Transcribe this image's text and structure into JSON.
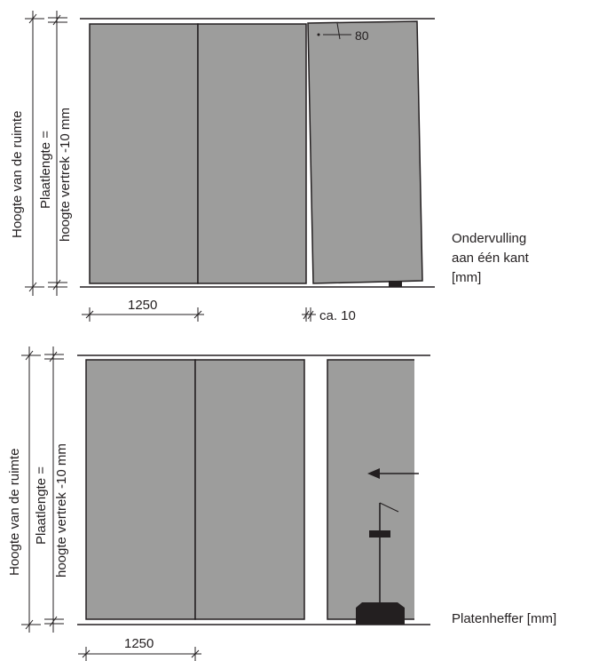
{
  "diagram_top": {
    "room_height_label": "Hoogte van de ruimte",
    "plate_length_line1": "Plaatlengte =",
    "plate_length_line2": "hoogte vertrek -10 mm",
    "panel_width": "1250",
    "gap_label": "ca. 10",
    "offset_label": "80",
    "note_line1": "Ondervulling",
    "note_line2": "aan één kant",
    "note_line3": "[mm]"
  },
  "diagram_bottom": {
    "room_height_label": "Hoogte van de ruimte",
    "plate_length_line1": "Plaatlengte =",
    "plate_length_line2": "hoogte vertrek -10 mm",
    "panel_width": "1250",
    "note": "Platenheffer [mm]"
  },
  "colors": {
    "panel": "#9d9d9c",
    "ink": "#231f20"
  }
}
